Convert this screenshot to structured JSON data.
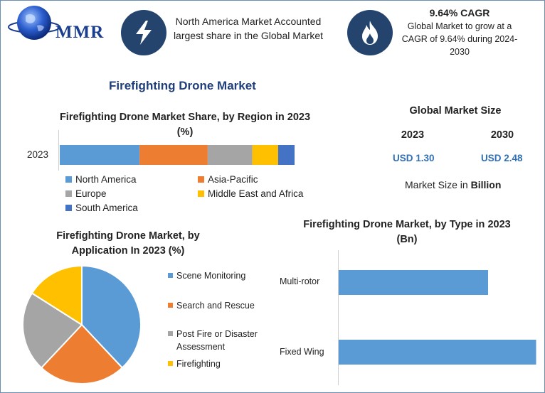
{
  "logo": {
    "text": "MMR"
  },
  "info_boxes": {
    "region": {
      "icon": "lightning-bolt-icon",
      "text": "North America Market Accounted largest share in the Global Market"
    },
    "cagr": {
      "icon": "flame-icon",
      "title": "9.64% CAGR",
      "text": "Global Market to grow at a CAGR of 9.64% during 2024-2030"
    }
  },
  "main_title": "Firefighting Drone Market",
  "market_size": {
    "title": "Global Market Size",
    "years": [
      "2023",
      "2030"
    ],
    "values": [
      "USD 1.30",
      "USD 2.48"
    ],
    "unit_prefix": "Market Size in",
    "unit_value": "Billion"
  },
  "colors": {
    "blue": "#5b9bd5",
    "orange": "#ed7d31",
    "gray": "#a5a5a5",
    "yellow": "#ffc000",
    "dark_blue": "#4472c4",
    "navy": "#24446e"
  },
  "chart_data": [
    {
      "type": "bar",
      "orientation": "horizontal-stacked",
      "title": "Firefighting Drone Market Share, by Region in 2023 (%)",
      "categories": [
        "2023"
      ],
      "series": [
        {
          "name": "North America",
          "values": [
            34
          ],
          "color": "#5b9bd5"
        },
        {
          "name": "Asia-Pacific",
          "values": [
            29
          ],
          "color": "#ed7d31"
        },
        {
          "name": "Europe",
          "values": [
            19
          ],
          "color": "#a5a5a5"
        },
        {
          "name": "Middle East and Africa",
          "values": [
            11
          ],
          "color": "#ffc000"
        },
        {
          "name": "South America",
          "values": [
            7
          ],
          "color": "#4472c4"
        }
      ],
      "legend": "bottom"
    },
    {
      "type": "pie",
      "title": "Firefighting Drone Market, by Application In 2023 (%)",
      "labels": [
        "Scene Monitoring",
        "Search and Rescue",
        "Post Fire or Disaster Assessment",
        "Firefighting"
      ],
      "values": [
        38,
        24,
        22,
        16
      ],
      "colors": [
        "#5b9bd5",
        "#ed7d31",
        "#a5a5a5",
        "#ffc000"
      ],
      "legend": "right"
    },
    {
      "type": "bar",
      "orientation": "horizontal",
      "title": "Firefighting Drone Market, by Type in 2023 (Bn)",
      "categories": [
        "Multi-rotor",
        "Fixed Wing"
      ],
      "values": [
        0.56,
        0.74
      ],
      "xlim": [
        0,
        0.8
      ],
      "color": "#5b9bd5"
    }
  ]
}
